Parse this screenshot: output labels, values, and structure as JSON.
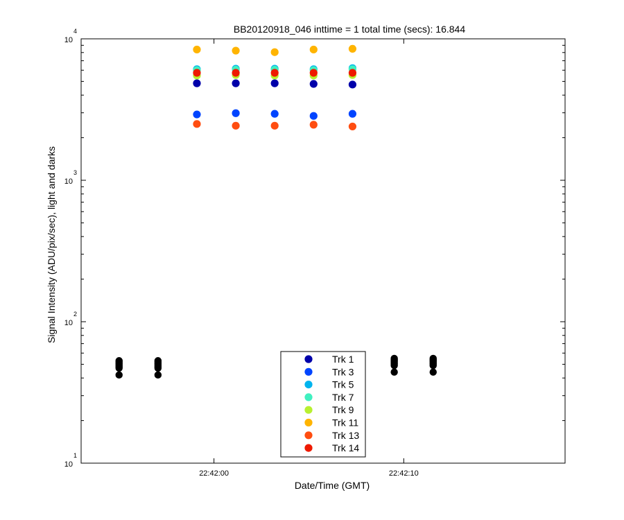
{
  "chart_data": {
    "type": "scatter",
    "title": "BB20120918_046 inttime = 1 total time (secs): 16.844",
    "xlabel": "Date/Time (GMT)",
    "ylabel": "Signal Intensity (ADU/pix/sec), light and darks",
    "yscale": "log",
    "ylim": [
      10,
      10000
    ],
    "y_ticks": [
      {
        "value": 10,
        "base": "10",
        "exp": "1"
      },
      {
        "value": 100,
        "base": "10",
        "exp": "2"
      },
      {
        "value": 1000,
        "base": "10",
        "exp": "3"
      },
      {
        "value": 10000,
        "base": "10",
        "exp": "4"
      }
    ],
    "xlim": [
      "22:41:56.5",
      "22:42:18.9"
    ],
    "x_ticks": [
      "22:42:00",
      "22:42:10"
    ],
    "x_tick_seconds": [
      0,
      10
    ],
    "x_range_seconds": [
      -7.0,
      18.5
    ],
    "grid": false,
    "legend_position": "bottom-center",
    "series": [
      {
        "name": "Trk 1",
        "color": "#0000aa",
        "x_seconds": [
          -0.9,
          1.15,
          3.2,
          5.25,
          7.3
        ],
        "values": [
          4850,
          4850,
          4850,
          4800,
          4750
        ]
      },
      {
        "name": "Trk 3",
        "color": "#0044ff",
        "x_seconds": [
          -0.9,
          1.15,
          3.2,
          5.25,
          7.3
        ],
        "values": [
          2920,
          2980,
          2950,
          2850,
          2950
        ]
      },
      {
        "name": "Trk 5",
        "color": "#00b4ee",
        "x_seconds": [
          -0.9,
          1.15,
          3.2,
          5.25,
          7.3
        ],
        "values": [
          6100,
          6150,
          6150,
          6100,
          6200
        ]
      },
      {
        "name": "Trk 7",
        "color": "#40f0c0",
        "x_seconds": [
          -0.9,
          1.15,
          3.2,
          5.25,
          7.3
        ],
        "values": [
          6000,
          6050,
          6050,
          6000,
          6100
        ]
      },
      {
        "name": "Trk 9",
        "color": "#b8f030",
        "x_seconds": [
          -0.9,
          1.15,
          3.2,
          5.25,
          7.3
        ],
        "values": [
          5500,
          5550,
          5500,
          5500,
          5550
        ]
      },
      {
        "name": "Trk 11",
        "color": "#ffb400",
        "x_seconds": [
          -0.9,
          1.15,
          3.2,
          5.25,
          7.3
        ],
        "values": [
          8400,
          8250,
          8050,
          8400,
          8500
        ]
      },
      {
        "name": "Trk 13",
        "color": "#ff4d10",
        "x_seconds": [
          -0.9,
          1.15,
          3.2,
          5.25,
          7.3
        ],
        "values": [
          2500,
          2430,
          2430,
          2470,
          2400
        ]
      },
      {
        "name": "Trk 14",
        "color": "#ee1a00",
        "x_seconds": [
          -0.9,
          1.15,
          3.2,
          5.25,
          7.3
        ],
        "values": [
          5750,
          5750,
          5750,
          5750,
          5750
        ]
      }
    ],
    "dark_series": {
      "color": "#000000",
      "x_seconds": [
        -5.0,
        -5.0,
        -5.0,
        -5.0,
        -5.0,
        -5.0,
        -5.0,
        -5.0,
        -2.95,
        -2.95,
        -2.95,
        -2.95,
        -2.95,
        -2.95,
        -2.95,
        -2.95,
        9.5,
        9.5,
        9.5,
        9.5,
        9.5,
        9.5,
        9.5,
        9.5,
        11.55,
        11.55,
        11.55,
        11.55,
        11.55,
        11.55,
        11.55,
        11.55
      ],
      "values": [
        42,
        47,
        48,
        49,
        50,
        51,
        52,
        53,
        42,
        47,
        48,
        49,
        50,
        51,
        52,
        53,
        44,
        49,
        50,
        51,
        52,
        53,
        54,
        55,
        44,
        49,
        50,
        51,
        52,
        53,
        54,
        55
      ]
    }
  }
}
